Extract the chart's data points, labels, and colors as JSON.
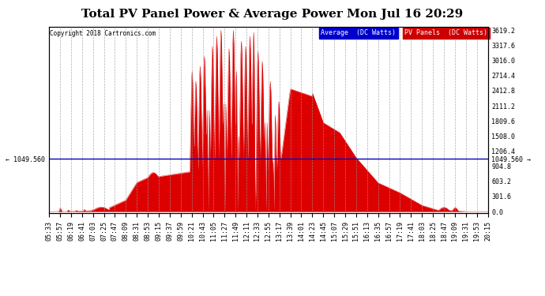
{
  "title": "Total PV Panel Power & Average Power Mon Jul 16 20:29",
  "copyright": "Copyright 2018 Cartronics.com",
  "legend_labels": [
    "Average  (DC Watts)",
    "PV Panels  (DC Watts)"
  ],
  "legend_colors_bg": [
    "#0000cc",
    "#cc0000"
  ],
  "avg_line_value": 1049.56,
  "avg_line_label": "1049.560",
  "yticks_right": [
    0.0,
    301.6,
    603.2,
    904.8,
    1206.4,
    1508.0,
    1809.6,
    2111.2,
    2412.8,
    2714.4,
    3016.0,
    3317.6,
    3619.2
  ],
  "ymax": 3619.2,
  "fill_color": "#dd0000",
  "avg_color": "#0000bb",
  "bg_color": "#ffffff",
  "grid_color": "#999999",
  "title_fontsize": 11,
  "tick_fontsize": 6,
  "time_labels": [
    "05:33",
    "05:57",
    "06:19",
    "06:41",
    "07:03",
    "07:25",
    "07:47",
    "08:09",
    "08:31",
    "08:53",
    "09:15",
    "09:37",
    "09:59",
    "10:21",
    "10:43",
    "11:05",
    "11:27",
    "11:49",
    "12:11",
    "12:33",
    "12:55",
    "13:17",
    "13:39",
    "14:01",
    "14:23",
    "14:45",
    "15:07",
    "15:29",
    "15:51",
    "16:13",
    "16:35",
    "16:57",
    "17:19",
    "17:41",
    "18:03",
    "18:25",
    "18:47",
    "19:09",
    "19:31",
    "19:53",
    "20:15"
  ]
}
